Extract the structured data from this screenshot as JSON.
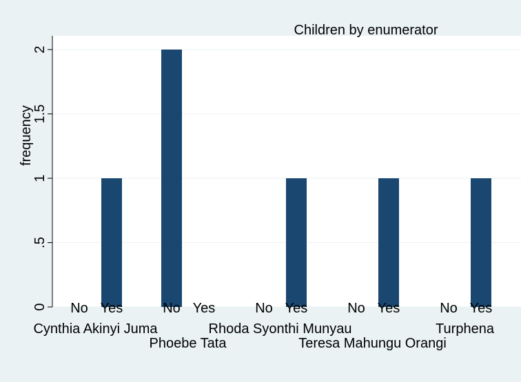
{
  "colors": {
    "background": "#eaf2f3",
    "plot_background": "#ffffff",
    "grid": "#eaf2f3",
    "bar": "#1a476f",
    "axis": "#000000"
  },
  "chart_data": {
    "type": "bar",
    "title": "Children by enumerator",
    "xlabel": "",
    "ylabel": "frequency",
    "ylim": [
      0,
      2
    ],
    "yticks": [
      0,
      0.5,
      1,
      1.5,
      2
    ],
    "ytick_labels": [
      "0",
      ".5",
      "1",
      "1.5",
      "2"
    ],
    "grid": true,
    "legend": "none",
    "groups": [
      {
        "label": "Cynthia Akinyi Juma",
        "label_row": 1,
        "bars": [
          {
            "category": "No",
            "value": 0
          },
          {
            "category": "Yes",
            "value": 1
          }
        ]
      },
      {
        "label": "Phoebe Tata",
        "label_row": 2,
        "bars": [
          {
            "category": "No",
            "value": 2
          },
          {
            "category": "Yes",
            "value": 0
          }
        ]
      },
      {
        "label": "Rhoda Syonthi Munyau",
        "label_row": 1,
        "bars": [
          {
            "category": "No",
            "value": 0
          },
          {
            "category": "Yes",
            "value": 1
          }
        ]
      },
      {
        "label": "Teresa Mahungu Orangi",
        "label_row": 2,
        "bars": [
          {
            "category": "No",
            "value": 0
          },
          {
            "category": "Yes",
            "value": 1
          }
        ]
      },
      {
        "label": "Turphena",
        "label_row": 1,
        "bars": [
          {
            "category": "No",
            "value": 0
          },
          {
            "category": "Yes",
            "value": 1
          }
        ]
      }
    ]
  }
}
